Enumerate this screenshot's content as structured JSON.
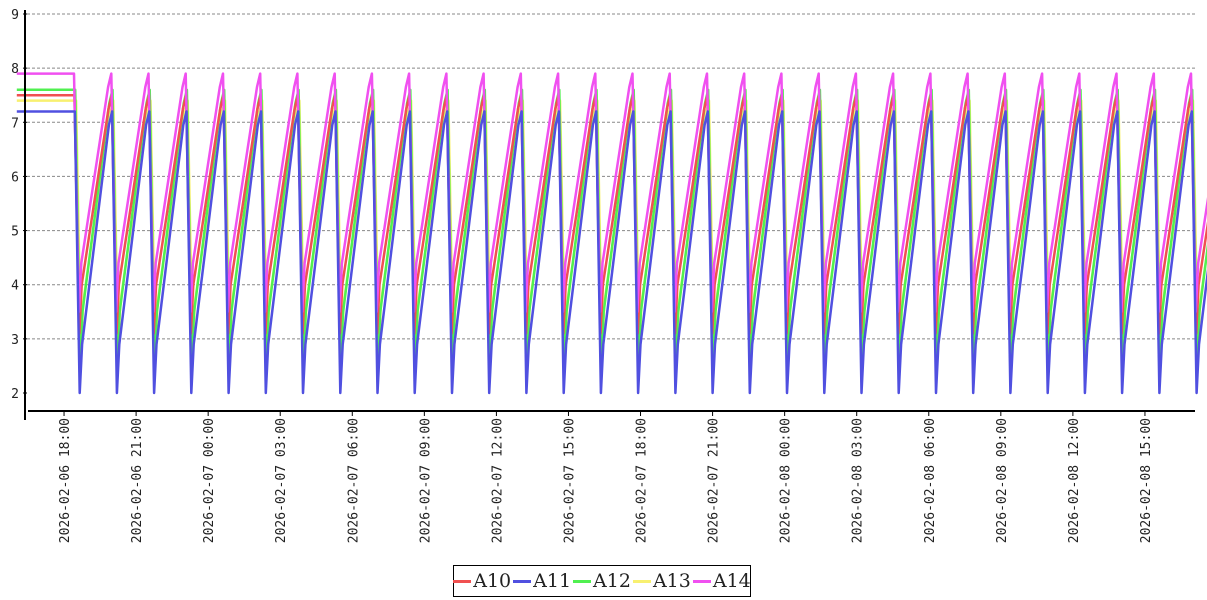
{
  "chart_data": {
    "type": "line",
    "title": "",
    "xlabel": "",
    "ylabel": "",
    "ylim": [
      2,
      9
    ],
    "y_ticks": [
      "2",
      "3",
      "4",
      "5",
      "6",
      "7",
      "8",
      "9"
    ],
    "x_range": [
      "2026-02-06 16:00",
      "2026-02-08 17:30"
    ],
    "x_ticks": [
      "2026-02-06 18:00",
      "2026-02-06 21:00",
      "2026-02-07 00:00",
      "2026-02-07 03:00",
      "2026-02-07 06:00",
      "2026-02-07 09:00",
      "2026-02-07 12:00",
      "2026-02-07 15:00",
      "2026-02-07 18:00",
      "2026-02-07 21:00",
      "2026-02-08 00:00",
      "2026-02-08 03:00",
      "2026-02-08 06:00",
      "2026-02-08 09:00",
      "2026-02-08 12:00",
      "2026-02-08 15:00"
    ],
    "grid": "horizontal dashed",
    "legend_position": "bottom-center",
    "cycle": {
      "first_peak": "2026-02-06 18:25",
      "period_minutes": 93,
      "count": 31
    },
    "series": [
      {
        "name": "A10",
        "color": "#f05050",
        "min": 3.1,
        "max": 7.5
      },
      {
        "name": "A11",
        "color": "#5050e0",
        "min": 2.0,
        "max": 7.2
      },
      {
        "name": "A12",
        "color": "#50f050",
        "min": 2.6,
        "max": 7.6
      },
      {
        "name": "A13",
        "color": "#f8f070",
        "min": 2.8,
        "max": 7.4
      },
      {
        "name": "A14",
        "color": "#f050f0",
        "min": 3.5,
        "max": 7.9
      }
    ]
  }
}
